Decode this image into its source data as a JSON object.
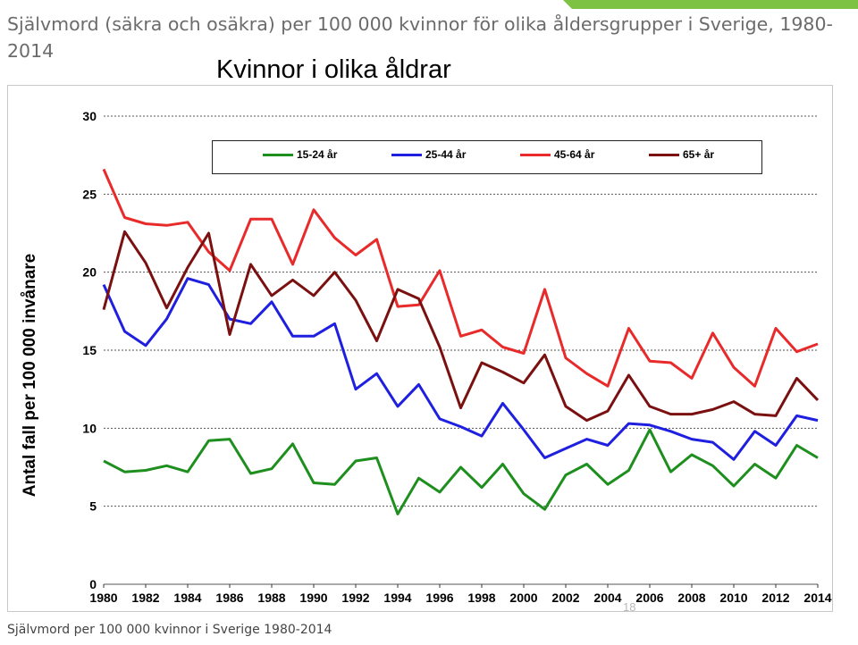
{
  "page": {
    "title": "Självmord (säkra och osäkra) per 100 000 kvinnor för olika åldersgrupper i Sverige, 1980-2014",
    "subtitle": "Kvinnor i olika åldrar",
    "source": "Självmord per 100 000 kvinnor i Sverige 1980-2014",
    "slide_number": "18",
    "accent_color": "#7dc242"
  },
  "chart_data": {
    "type": "line",
    "title": "",
    "xlabel": "",
    "ylabel": "Antal fall per 100 000 invånare",
    "x": [
      1980,
      1981,
      1982,
      1983,
      1984,
      1985,
      1986,
      1987,
      1988,
      1989,
      1990,
      1991,
      1992,
      1993,
      1994,
      1995,
      1996,
      1997,
      1998,
      1999,
      2000,
      2001,
      2002,
      2003,
      2004,
      2005,
      2006,
      2007,
      2008,
      2009,
      2010,
      2011,
      2012,
      2013,
      2014
    ],
    "x_tick_labels": [
      "1980",
      "1982",
      "1984",
      "1986",
      "1988",
      "1990",
      "1992",
      "1994",
      "1996",
      "1998",
      "2000",
      "2002",
      "2004",
      "2006",
      "2008",
      "2010",
      "2012",
      "2014"
    ],
    "y_ticks": [
      "0",
      "5",
      "10",
      "15",
      "20",
      "25",
      "30"
    ],
    "ylim": [
      0,
      30
    ],
    "grid": "horizontal dotted",
    "legend_position": "top",
    "series": [
      {
        "name": "15-24 år",
        "color": "#1e8f1e",
        "values": [
          7.9,
          7.2,
          7.3,
          7.6,
          7.2,
          9.2,
          9.3,
          7.1,
          7.4,
          9.0,
          6.5,
          6.4,
          7.9,
          8.1,
          4.5,
          6.8,
          5.9,
          7.5,
          6.2,
          7.7,
          5.8,
          4.8,
          7.0,
          7.7,
          6.4,
          7.3,
          9.9,
          7.2,
          8.3,
          7.6,
          6.3,
          7.7,
          6.8,
          8.9,
          8.1
        ]
      },
      {
        "name": "25-44 år",
        "color": "#1f1fe0",
        "values": [
          19.2,
          16.2,
          15.3,
          17.0,
          19.6,
          19.2,
          17.0,
          16.7,
          18.1,
          15.9,
          15.9,
          16.7,
          12.5,
          13.5,
          11.4,
          12.8,
          10.6,
          10.1,
          9.5,
          11.6,
          9.9,
          8.1,
          8.7,
          9.3,
          8.9,
          10.3,
          10.2,
          9.8,
          9.3,
          9.1,
          8.0,
          9.8,
          8.9,
          10.8,
          10.5
        ]
      },
      {
        "name": "45-64 år",
        "color": "#e82a2a",
        "values": [
          26.6,
          23.5,
          23.1,
          23.0,
          23.2,
          21.3,
          20.1,
          23.4,
          23.4,
          20.5,
          24.0,
          22.2,
          21.1,
          22.1,
          17.8,
          17.9,
          20.1,
          15.9,
          16.3,
          15.2,
          14.8,
          18.9,
          14.5,
          13.5,
          12.7,
          16.4,
          14.3,
          14.2,
          13.2,
          16.1,
          13.9,
          12.7,
          16.4,
          14.9,
          15.4
        ]
      },
      {
        "name": "65+ år",
        "color": "#7a1010",
        "values": [
          17.6,
          22.6,
          20.6,
          17.7,
          20.3,
          22.5,
          16.0,
          20.5,
          18.5,
          19.5,
          18.5,
          20.0,
          18.2,
          15.6,
          18.9,
          18.3,
          15.2,
          11.3,
          14.2,
          13.6,
          12.9,
          14.7,
          11.4,
          10.5,
          11.1,
          13.4,
          11.4,
          10.9,
          10.9,
          11.2,
          11.7,
          10.9,
          10.8,
          13.2,
          11.8
        ]
      }
    ]
  }
}
